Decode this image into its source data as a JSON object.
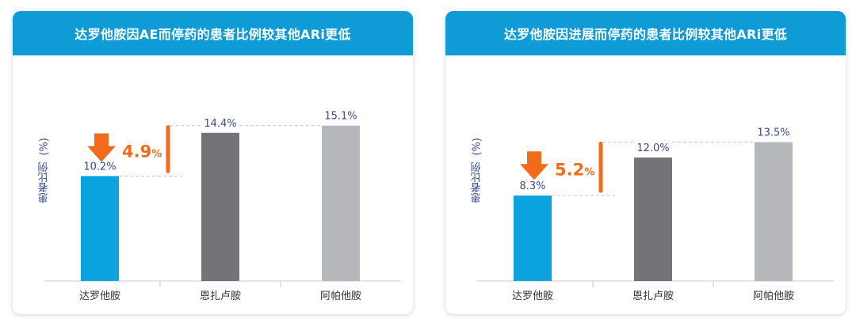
{
  "colors": {
    "header": "#0f9bd6",
    "bar_primary": "#0aa3e0",
    "bar_dark": "#737478",
    "bar_light": "#b5b7ba",
    "accent": "#f26b1d",
    "label": "#3a4a8a"
  },
  "chart_data": [
    {
      "type": "bar",
      "title": "达罗他胺因AE而停药的患者比例较其他ARi更低",
      "ylabel": "患者比例",
      "yunit": "(%)",
      "categories": [
        "达罗他胺",
        "恩扎卢胺",
        "阿帕他胺"
      ],
      "values": [
        10.2,
        14.4,
        15.1
      ],
      "value_labels": [
        "10.2%",
        "14.4%",
        "15.1%"
      ],
      "ylim": [
        0,
        16
      ],
      "annotation": {
        "value": "4.9",
        "unit": "%"
      },
      "grid": false
    },
    {
      "type": "bar",
      "title": "达罗他胺因进展而停药的患者比例较其他ARi更低",
      "ylabel": "患者比例",
      "yunit": "(%)",
      "categories": [
        "达罗他胺",
        "恩扎卢胺",
        "阿帕他胺"
      ],
      "values": [
        8.3,
        12.0,
        13.5
      ],
      "value_labels": [
        "8.3%",
        "12.0%",
        "13.5%"
      ],
      "ylim": [
        0,
        16
      ],
      "annotation": {
        "value": "5.2",
        "unit": "%"
      },
      "grid": false
    }
  ]
}
